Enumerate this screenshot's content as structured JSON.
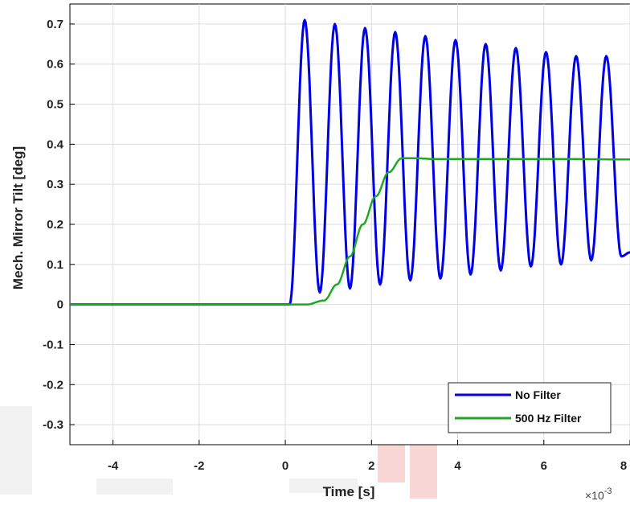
{
  "chart_data": {
    "type": "line",
    "title": "",
    "xlabel": "Time [s]",
    "ylabel": "Mech. Mirror Tilt [deg]",
    "x_exponent_label": "×10",
    "x_exponent_power": "-3",
    "x_scale": 0.001,
    "xlim": [
      -5,
      8
    ],
    "ylim": [
      -0.35,
      0.75
    ],
    "xticks": [
      -4,
      -2,
      0,
      2,
      4,
      6,
      8
    ],
    "yticks": [
      -0.3,
      -0.2,
      -0.1,
      0,
      0.1,
      0.2,
      0.3,
      0.4,
      0.5,
      0.6,
      0.7
    ],
    "xtick_labels": [
      "-4",
      "-2",
      "0",
      "2",
      "4",
      "6",
      "8"
    ],
    "ytick_labels": [
      "-0.3",
      "-0.2",
      "-0.1",
      "0",
      "0.1",
      "0.2",
      "0.3",
      "0.4",
      "0.5",
      "0.6",
      "0.7"
    ],
    "grid": true,
    "legend_position": "bottom-right",
    "series": [
      {
        "name": "No Filter",
        "color": "#0000e6",
        "x": [
          -5,
          0.1,
          0.45,
          0.8,
          1.15,
          1.5,
          1.85,
          2.2,
          2.55,
          2.9,
          3.25,
          3.6,
          3.95,
          4.3,
          4.65,
          5.0,
          5.35,
          5.7,
          6.05,
          6.4,
          6.75,
          7.1,
          7.45,
          7.8,
          8.0
        ],
        "y": [
          0,
          0,
          0.71,
          0.03,
          0.7,
          0.04,
          0.69,
          0.05,
          0.68,
          0.06,
          0.67,
          0.065,
          0.66,
          0.075,
          0.65,
          0.085,
          0.64,
          0.095,
          0.63,
          0.1,
          0.62,
          0.11,
          0.62,
          0.12,
          0.13
        ]
      },
      {
        "name": "500 Hz Filter",
        "color": "#1fa824",
        "x": [
          -5,
          0.5,
          0.9,
          1.2,
          1.5,
          1.8,
          2.1,
          2.4,
          2.7,
          3.0,
          3.5,
          5.0,
          6.5,
          8.0
        ],
        "y": [
          0,
          0,
          0.01,
          0.05,
          0.12,
          0.2,
          0.27,
          0.33,
          0.365,
          0.365,
          0.363,
          0.363,
          0.363,
          0.362
        ]
      }
    ]
  },
  "legend": {
    "entry1": "No Filter",
    "entry2": "500 Hz Filter"
  }
}
